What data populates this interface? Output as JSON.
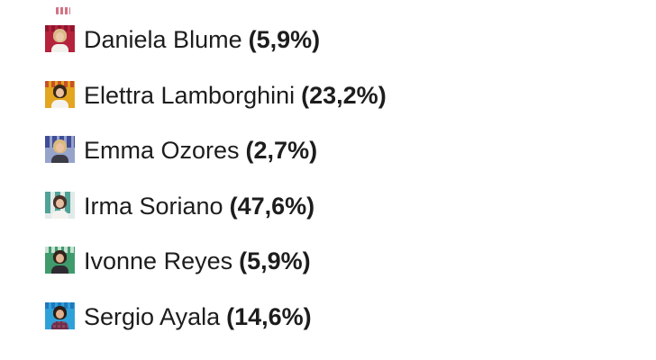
{
  "page": {
    "background": "#ffffff",
    "text_color": "#1d1d1d"
  },
  "cropped_fragment": {
    "description": "bottom sliver of a cropped thumbnail from the row above",
    "color": "#c23550"
  },
  "poll": {
    "people": [
      {
        "name": "Daniela Blume",
        "pct": "(5,9%)",
        "value": 5.9,
        "thumb": {
          "bg": "#b5223c",
          "caption": "#87122a",
          "hair": "#d9b98a",
          "face": "#ecc9a8",
          "torso": "#f3f1ec"
        }
      },
      {
        "name": "Elettra Lamborghini",
        "pct": "(23,2%)",
        "value": 23.2,
        "thumb": {
          "bg": "#e4a51f",
          "caption": "#c13b2a",
          "hair": "#39281b",
          "face": "#eac2a0",
          "torso": "#f5f3ef"
        }
      },
      {
        "name": "Emma Ozores",
        "pct": "(2,7%)",
        "value": 2.7,
        "thumb": {
          "bg": "#96a3cb",
          "caption": "#2e3d8f",
          "hair": "#d9b97c",
          "face": "#e9c2a2",
          "torso": "#3c3c46"
        }
      },
      {
        "name": "Irma Soriano",
        "pct": "(47,6%)",
        "value": 47.6,
        "thumb": {
          "bg": "#e2ebe9",
          "caption": "#3f9a8d",
          "hair": "#4a3228",
          "face": "#e6bfa2",
          "torso": "#f4f2ee"
        }
      },
      {
        "name": "Ivonne Reyes",
        "pct": "(5,9%)",
        "value": 5.9,
        "thumb": {
          "bg": "#3f9b6c",
          "caption": "#e9f2ea",
          "hair": "#33231c",
          "face": "#e3b795",
          "torso": "#2f2b33"
        }
      },
      {
        "name": "Sergio Ayala",
        "pct": "(14,6%)",
        "value": 14.6,
        "thumb": {
          "bg": "#2fa1d9",
          "caption": "#1d6db5",
          "hair": "#2a1d16",
          "face": "#e2b08c",
          "torso": "#8e4660",
          "torso_stripe": "#6d2f49"
        }
      }
    ]
  }
}
